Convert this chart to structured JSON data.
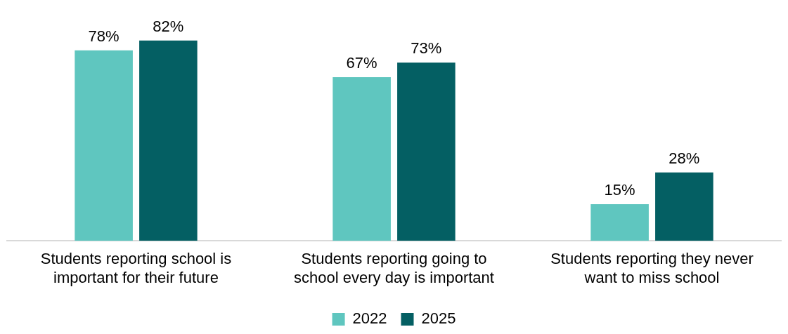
{
  "chart_data": {
    "type": "bar",
    "categories": [
      "Students reporting school is important for their future",
      "Students reporting going to school every day is important",
      "Students reporting they never want to miss school"
    ],
    "series": [
      {
        "name": "2022",
        "color": "#5fc6bf",
        "values": [
          78,
          67,
          15
        ],
        "value_labels": [
          "78%",
          "67%",
          "15%"
        ]
      },
      {
        "name": "2025",
        "color": "#045f63",
        "values": [
          82,
          73,
          28
        ],
        "value_labels": [
          "82%",
          "73%",
          "28%"
        ]
      }
    ],
    "tick_labels": "x",
    "grid": false,
    "legend": "bottom"
  }
}
